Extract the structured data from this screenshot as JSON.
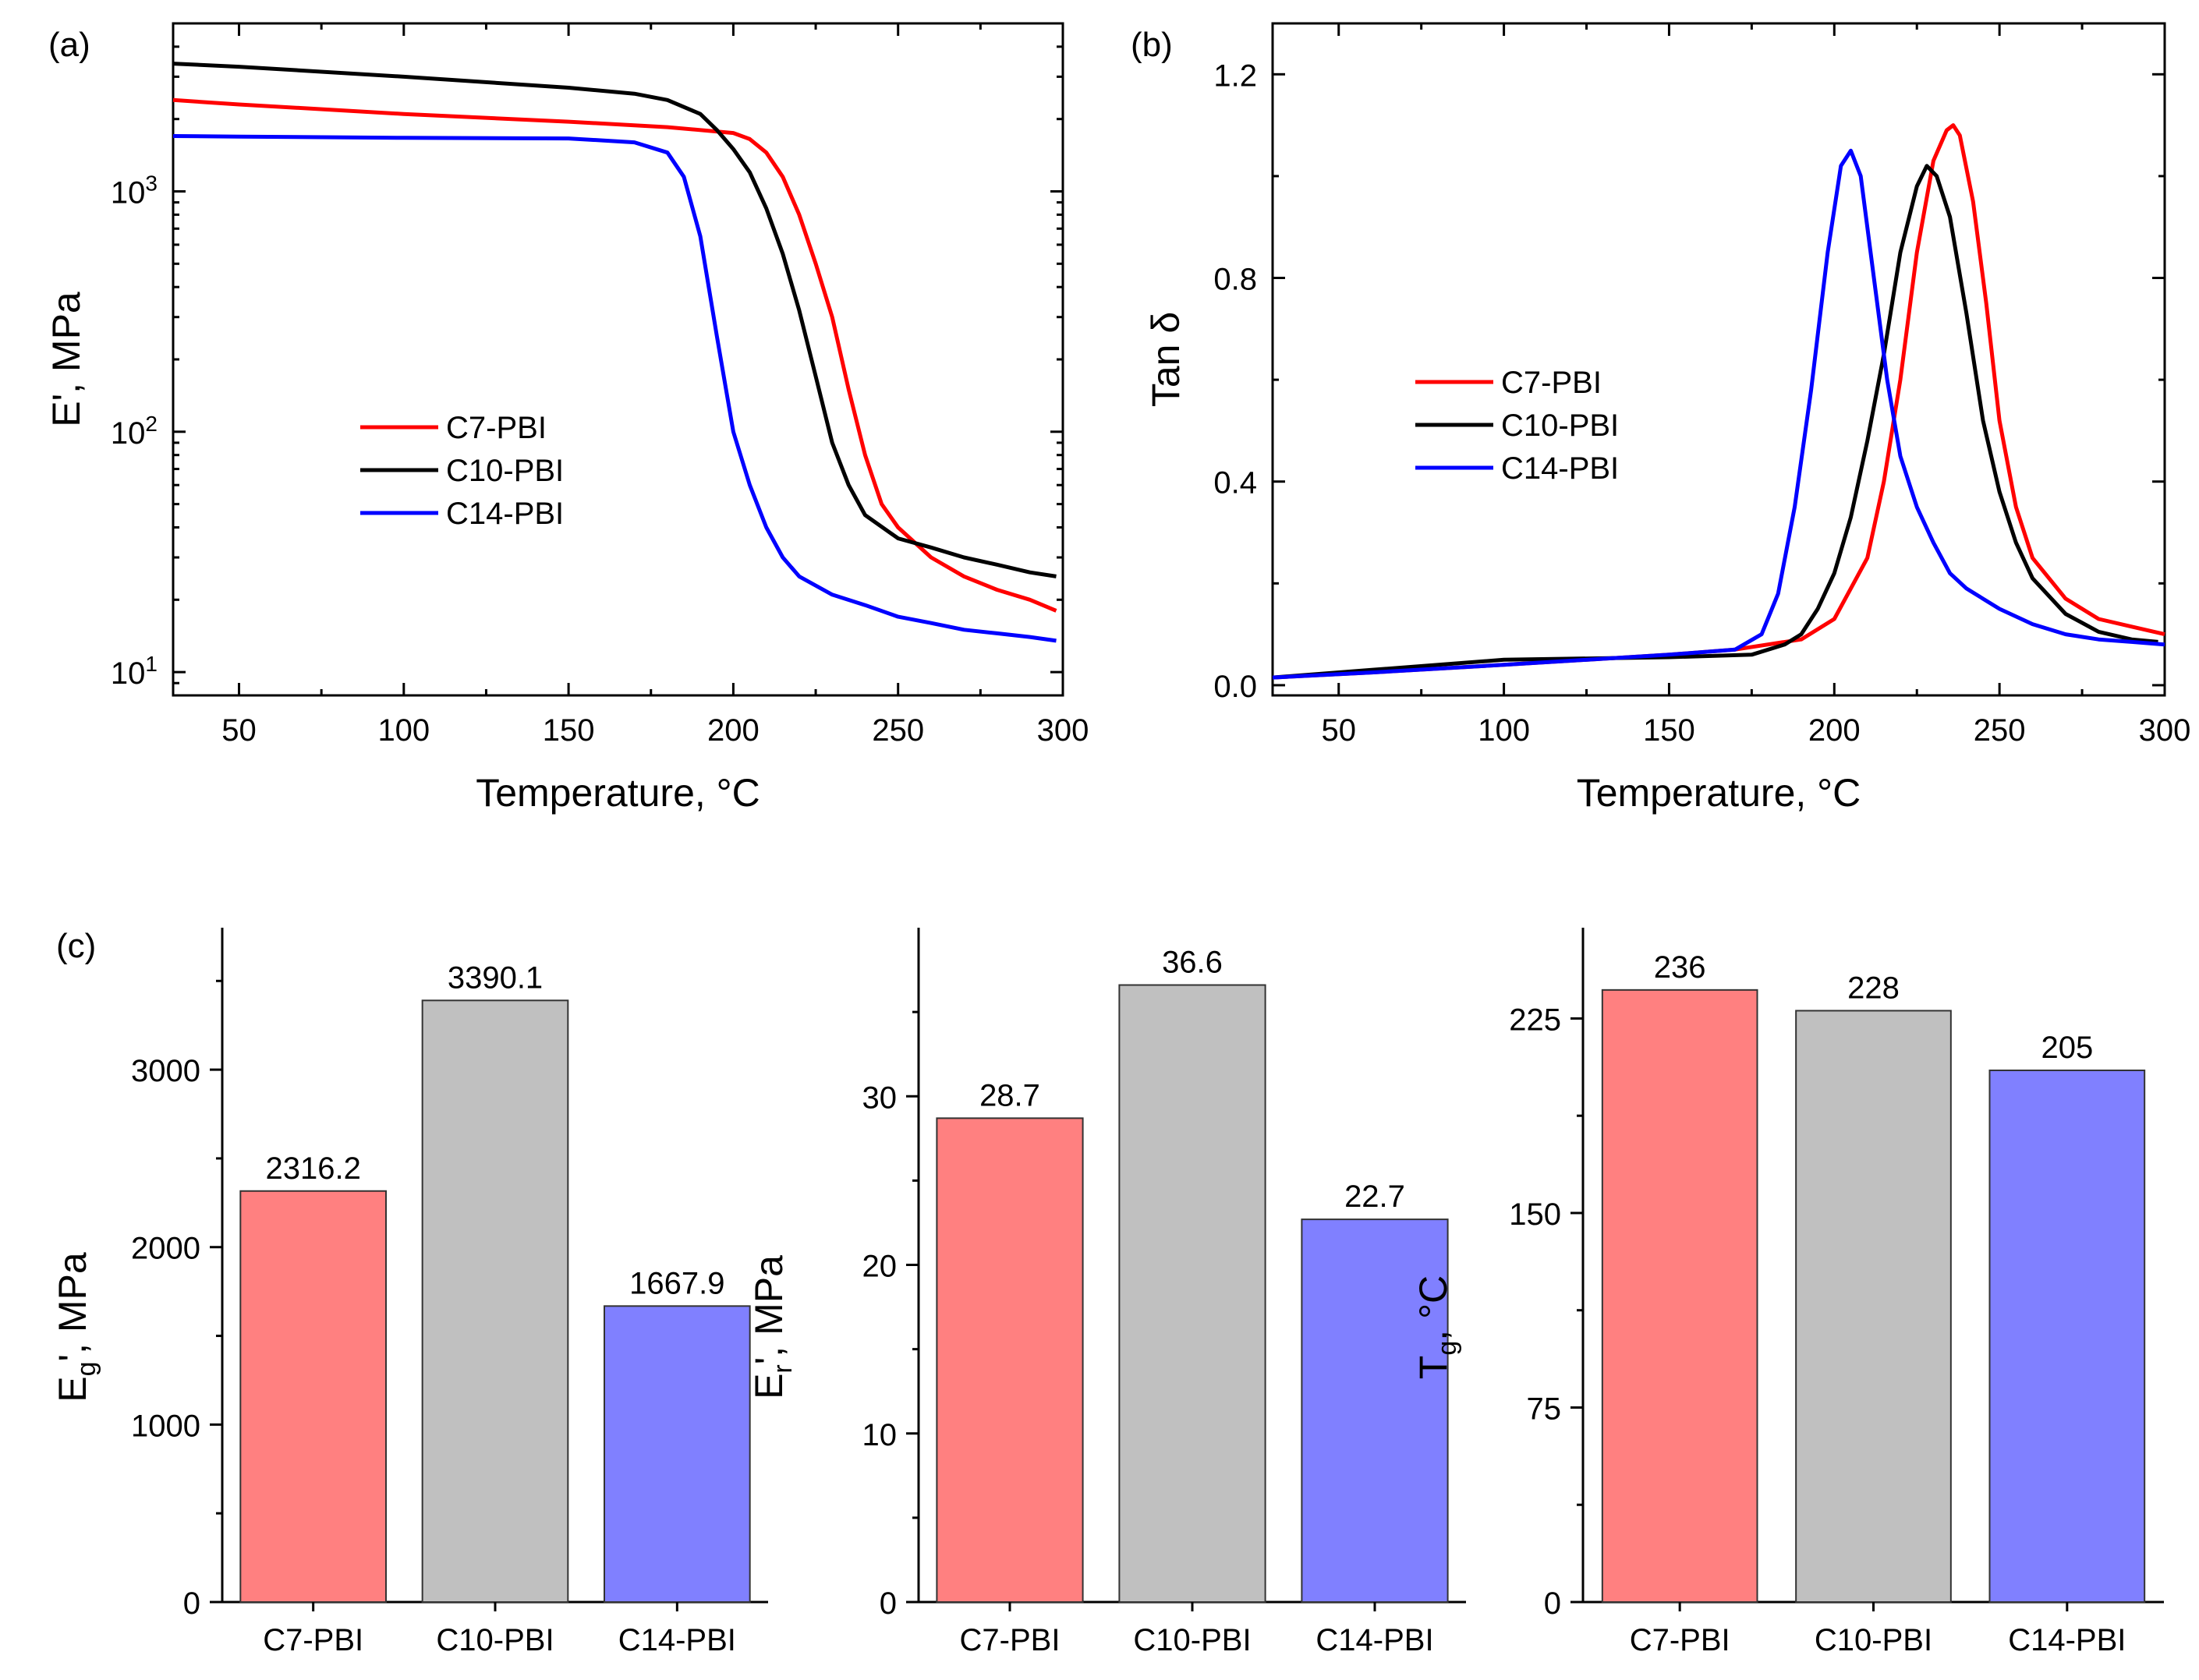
{
  "panels": {
    "a": {
      "label": "(a)"
    },
    "b": {
      "label": "(b)"
    },
    "c": {
      "label": "(c)"
    }
  },
  "colors": {
    "C7-PBI": "#ff0000",
    "C10-PBI": "#000000",
    "C14-PBI": "#0000ff",
    "bar_C7": "#ff8080",
    "bar_C10": "#c0c0c0",
    "bar_C14": "#8080ff"
  },
  "chart_data": [
    {
      "id": "a",
      "type": "line",
      "xlabel": "Temperature, °C",
      "ylabel": "E', MPa",
      "yscale": "log",
      "xlim": [
        30,
        300
      ],
      "ylim": [
        8,
        5000
      ],
      "xticks": [
        50,
        100,
        150,
        200,
        250,
        300
      ],
      "yticks": [
        {
          "value": 10,
          "base": "10",
          "exp": "1"
        },
        {
          "value": 100,
          "base": "10",
          "exp": "2"
        },
        {
          "value": 1000,
          "base": "10",
          "exp": "3"
        }
      ],
      "legend": [
        "C7-PBI",
        "C10-PBI",
        "C14-PBI"
      ],
      "series": [
        {
          "name": "C7-PBI",
          "x": [
            30,
            50,
            100,
            150,
            180,
            200,
            205,
            210,
            215,
            220,
            225,
            230,
            235,
            240,
            245,
            250,
            260,
            270,
            280,
            290,
            298
          ],
          "y": [
            2400,
            2300,
            2100,
            1950,
            1850,
            1750,
            1650,
            1450,
            1150,
            800,
            500,
            300,
            150,
            80,
            50,
            40,
            30,
            25,
            22,
            20,
            18
          ]
        },
        {
          "name": "C10-PBI",
          "x": [
            30,
            50,
            100,
            150,
            170,
            180,
            190,
            195,
            200,
            205,
            210,
            215,
            220,
            225,
            230,
            235,
            240,
            250,
            260,
            270,
            280,
            290,
            298
          ],
          "y": [
            3400,
            3300,
            3000,
            2700,
            2550,
            2400,
            2100,
            1800,
            1500,
            1200,
            850,
            550,
            320,
            170,
            90,
            60,
            45,
            36,
            33,
            30,
            28,
            26,
            25
          ]
        },
        {
          "name": "C14-PBI",
          "x": [
            30,
            50,
            100,
            150,
            170,
            180,
            185,
            190,
            195,
            200,
            205,
            210,
            215,
            220,
            230,
            240,
            250,
            260,
            270,
            280,
            290,
            298
          ],
          "y": [
            1700,
            1690,
            1670,
            1660,
            1600,
            1450,
            1150,
            650,
            250,
            100,
            60,
            40,
            30,
            25,
            21,
            19,
            17,
            16,
            15,
            14.5,
            14,
            13.5
          ]
        }
      ]
    },
    {
      "id": "b",
      "type": "line",
      "xlabel": "Temperature, °C",
      "ylabel": "Tan δ",
      "xlim": [
        30,
        300
      ],
      "ylim": [
        -0.02,
        1.3
      ],
      "xticks": [
        50,
        100,
        150,
        200,
        250,
        300
      ],
      "yticks": [
        0.0,
        0.4,
        0.8,
        1.2
      ],
      "ytick_labels": [
        "0.0",
        "0.4",
        "0.8",
        "1.2"
      ],
      "legend": [
        "C7-PBI",
        "C10-PBI",
        "C14-PBI"
      ],
      "series": [
        {
          "name": "C7-PBI",
          "x": [
            30,
            60,
            100,
            150,
            170,
            190,
            200,
            210,
            215,
            220,
            225,
            230,
            234,
            236,
            238,
            242,
            246,
            250,
            255,
            260,
            270,
            280,
            290,
            300
          ],
          "y": [
            0.015,
            0.025,
            0.04,
            0.06,
            0.07,
            0.09,
            0.13,
            0.25,
            0.4,
            0.6,
            0.85,
            1.03,
            1.09,
            1.1,
            1.08,
            0.95,
            0.75,
            0.52,
            0.35,
            0.25,
            0.17,
            0.13,
            0.115,
            0.1
          ]
        },
        {
          "name": "C10-PBI",
          "x": [
            30,
            60,
            100,
            150,
            175,
            185,
            190,
            195,
            200,
            205,
            210,
            215,
            220,
            225,
            228,
            231,
            235,
            240,
            245,
            250,
            255,
            260,
            270,
            280,
            290,
            298
          ],
          "y": [
            0.015,
            0.03,
            0.05,
            0.055,
            0.06,
            0.08,
            0.1,
            0.15,
            0.22,
            0.33,
            0.48,
            0.65,
            0.85,
            0.98,
            1.02,
            1.0,
            0.92,
            0.73,
            0.52,
            0.38,
            0.28,
            0.21,
            0.14,
            0.105,
            0.09,
            0.085
          ]
        },
        {
          "name": "C14-PBI",
          "x": [
            30,
            60,
            100,
            150,
            170,
            178,
            183,
            188,
            193,
            198,
            202,
            205,
            208,
            212,
            216,
            220,
            225,
            230,
            235,
            240,
            250,
            260,
            270,
            280,
            290,
            300
          ],
          "y": [
            0.015,
            0.025,
            0.04,
            0.06,
            0.07,
            0.1,
            0.18,
            0.35,
            0.58,
            0.85,
            1.02,
            1.05,
            1.0,
            0.8,
            0.6,
            0.45,
            0.35,
            0.28,
            0.22,
            0.19,
            0.15,
            0.12,
            0.1,
            0.09,
            0.085,
            0.08
          ]
        }
      ]
    },
    {
      "id": "c1",
      "type": "bar",
      "categories": [
        "C7-PBI",
        "C10-PBI",
        "C14-PBI"
      ],
      "values": [
        2316.2,
        3390.1,
        1667.9
      ],
      "value_labels": [
        "2316.2",
        "3390.1",
        "1667.9"
      ],
      "ylabel_main": "E",
      "ylabel_sub": "g",
      "ylabel_rest": "', MPa",
      "ylim": [
        0,
        3800
      ],
      "yticks": [
        0,
        1000,
        2000,
        3000
      ],
      "minor_yticks": [
        500,
        1500,
        2500,
        3500
      ]
    },
    {
      "id": "c2",
      "type": "bar",
      "categories": [
        "C7-PBI",
        "C10-PBI",
        "C14-PBI"
      ],
      "values": [
        28.7,
        36.6,
        22.7
      ],
      "value_labels": [
        "28.7",
        "36.6",
        "22.7"
      ],
      "ylabel_main": "E",
      "ylabel_sub": "r",
      "ylabel_rest": "', MPa",
      "ylim": [
        0,
        40
      ],
      "yticks": [
        0,
        10,
        20,
        30
      ],
      "minor_yticks": [
        5,
        15,
        25,
        35
      ]
    },
    {
      "id": "c3",
      "type": "bar",
      "categories": [
        "C7-PBI",
        "C10-PBI",
        "C14-PBI"
      ],
      "values": [
        236,
        228,
        205
      ],
      "value_labels": [
        "236",
        "228",
        "205"
      ],
      "ylabel_main": "T",
      "ylabel_sub": "g",
      "ylabel_rest": ", °C",
      "ylim": [
        0,
        260
      ],
      "yticks": [
        0,
        75,
        150,
        225
      ],
      "minor_yticks": [
        37.5,
        112.5,
        187.5,
        262.5
      ]
    }
  ]
}
